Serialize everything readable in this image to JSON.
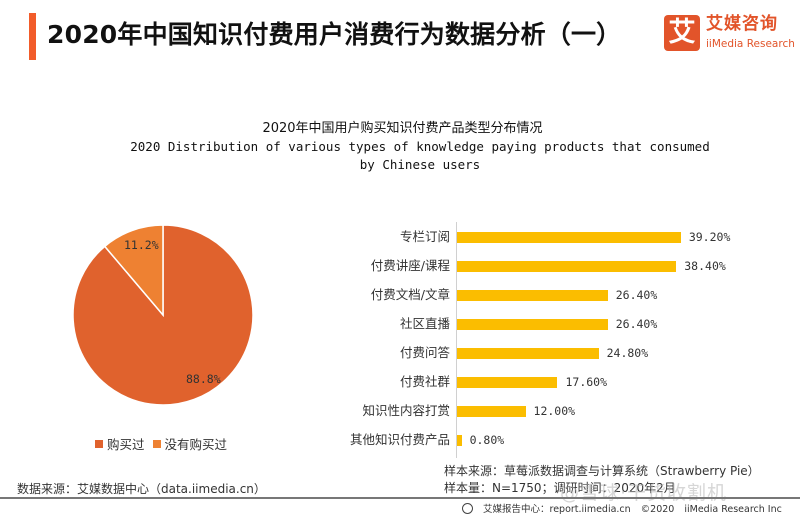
{
  "header": {
    "title": "2020年中国知识付费用户消费行为数据分析（一）",
    "accent_color": "#f25c2a"
  },
  "logo": {
    "mark": "艾",
    "name_cn": "艾媒咨询",
    "name_en": "iiMedia Research",
    "color": "#e2542a"
  },
  "chart_heading": {
    "title_cn": "2020年中国用户购买知识付费产品类型分布情况",
    "title_en_line1": "2020 Distribution of various types of knowledge paying products that consumed",
    "title_en_line2": "by Chinese users"
  },
  "chart_data": [
    {
      "type": "pie",
      "title": "",
      "categories": [
        "购买过",
        "没有购买过"
      ],
      "values": [
        88.8,
        11.2
      ],
      "labels": [
        "88.8%",
        "11.2%"
      ],
      "colors": [
        "#e0622d",
        "#ee8132"
      ],
      "legend_position": "bottom"
    },
    {
      "type": "bar",
      "orientation": "horizontal",
      "title": "2020年中国用户购买知识付费产品类型分布情况",
      "categories": [
        "专栏订阅",
        "付费讲座/课程",
        "付费文档/文章",
        "社区直播",
        "付费问答",
        "付费社群",
        "知识性内容打赏",
        "其他知识付费产品"
      ],
      "values": [
        39.2,
        38.4,
        26.4,
        26.4,
        24.8,
        17.6,
        12.0,
        0.8
      ],
      "labels": [
        "39.20%",
        "38.40%",
        "26.40%",
        "26.40%",
        "24.80%",
        "17.60%",
        "12.00%",
        "0.80%"
      ],
      "unit": "%",
      "color": "#fbbd00",
      "grid": false,
      "xlabel": "",
      "ylabel": ""
    }
  ],
  "pie": {
    "labels": [
      "88.8%",
      "11.2%"
    ],
    "legend": [
      {
        "label": "购买过",
        "color": "#e0622d"
      },
      {
        "label": "没有购买过",
        "color": "#ee8132"
      }
    ]
  },
  "bars": [
    {
      "label": "专栏订阅",
      "value": 39.2,
      "display": "39.20%"
    },
    {
      "label": "付费讲座/课程",
      "value": 38.4,
      "display": "38.40%"
    },
    {
      "label": "付费文档/文章",
      "value": 26.4,
      "display": "26.40%"
    },
    {
      "label": "社区直播",
      "value": 26.4,
      "display": "26.40%"
    },
    {
      "label": "付费问答",
      "value": 24.8,
      "display": "24.80%"
    },
    {
      "label": "付费社群",
      "value": 17.6,
      "display": "17.60%"
    },
    {
      "label": "知识性内容打赏",
      "value": 12.0,
      "display": "12.00%"
    },
    {
      "label": "其他知识付费产品",
      "value": 0.8,
      "display": "0.80%"
    }
  ],
  "sources": {
    "data_source": "数据来源：艾媒数据中心（data.iimedia.cn）",
    "sample_source": "样本来源：草莓派数据调查与计算系统（Strawberry Pie）",
    "sample_size": "样本量：N=1750；调研时间：2020年2月"
  },
  "footer": {
    "center": "艾媒报告中心：report.iimedia.cn",
    "copyright": "©2020",
    "company": "iiMedia Research Inc"
  },
  "watermark": "@雪球·干货收割机"
}
